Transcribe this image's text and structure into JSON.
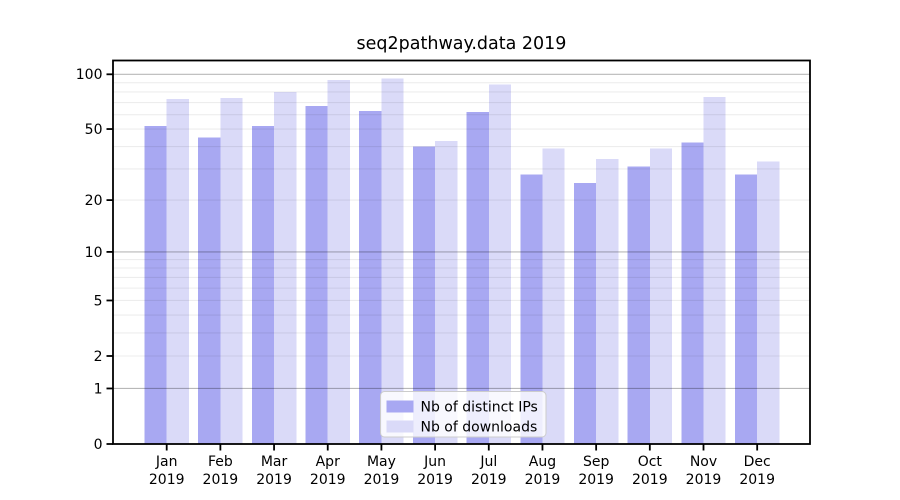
{
  "chart_data": {
    "type": "bar",
    "title": "seq2pathway.data 2019",
    "x_labels": [
      {
        "month": "Jan",
        "year": "2019"
      },
      {
        "month": "Feb",
        "year": "2019"
      },
      {
        "month": "Mar",
        "year": "2019"
      },
      {
        "month": "Apr",
        "year": "2019"
      },
      {
        "month": "May",
        "year": "2019"
      },
      {
        "month": "Jun",
        "year": "2019"
      },
      {
        "month": "Jul",
        "year": "2019"
      },
      {
        "month": "Aug",
        "year": "2019"
      },
      {
        "month": "Sep",
        "year": "2019"
      },
      {
        "month": "Oct",
        "year": "2019"
      },
      {
        "month": "Nov",
        "year": "2019"
      },
      {
        "month": "Dec",
        "year": "2019"
      }
    ],
    "series": [
      {
        "name": "Nb of distinct IPs",
        "color": "#a8a8f2",
        "values": [
          52,
          45,
          52,
          67,
          63,
          40,
          62,
          28,
          25,
          31,
          42,
          28
        ]
      },
      {
        "name": "Nb of downloads",
        "color": "#dadaf8",
        "values": [
          73,
          74,
          80,
          93,
          95,
          43,
          88,
          39,
          34,
          39,
          75,
          33
        ]
      }
    ],
    "yscale": "log1p",
    "ylim": [
      0,
      119
    ],
    "yticks": [
      100,
      50,
      20,
      10,
      5,
      2,
      1,
      0
    ],
    "grid": {
      "on": true,
      "major": [
        1,
        10,
        100
      ],
      "minor": [
        2,
        3,
        4,
        5,
        6,
        7,
        8,
        9,
        20,
        30,
        40,
        50,
        60,
        70,
        80,
        90
      ],
      "major_color": "rgba(0,0,0,0.28)",
      "minor_color": "rgba(0,0,0,0.07)"
    },
    "legend": {
      "position": "bottom-center"
    },
    "frame_color": "#000000",
    "background_color": "#ffffff"
  }
}
